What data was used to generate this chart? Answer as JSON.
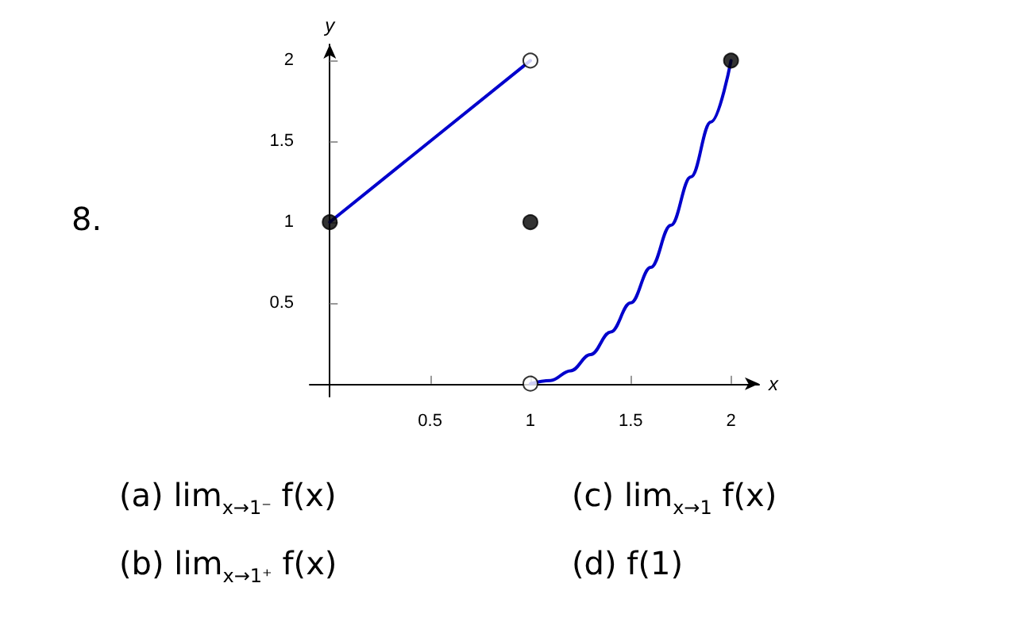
{
  "chart_data": {
    "type": "line",
    "xlabel": "x",
    "ylabel": "y",
    "xlim": [
      -0.1,
      2.14
    ],
    "ylim": [
      -0.08,
      2.1
    ],
    "xticks": [
      0.5,
      1,
      1.5,
      2
    ],
    "yticks": [
      0.5,
      1,
      1.5,
      2
    ],
    "marker": "none",
    "annotations": [
      "8.",
      "(a) lim$_{x→1⁻}$ f(x)",
      "(b) lim$_{x→1⁺}$ f(x)",
      "(c) lim$_{x→1}$ f(x)",
      "(d) f(1)"
    ],
    "series": [
      {
        "color": "#0000cc",
        "x": [
          0,
          1
        ],
        "values": [
          1,
          2
        ]
      },
      {
        "color": "#0000cc",
        "x": [
          1,
          1.1,
          1.2,
          1.3,
          1.4,
          1.5,
          1.6,
          1.7,
          1.8,
          1.9,
          2
        ],
        "values": [
          0,
          0.02,
          0.08,
          0.18,
          0.32,
          0.5,
          0.72,
          0.98,
          1.28,
          1.62,
          2
        ]
      },
      {
        "type": "scatter",
        "color": "#000000",
        "marker": "circle",
        "x": [
          0,
          1,
          2
        ],
        "values": [
          1,
          1,
          2
        ]
      },
      {
        "type": "scatter",
        "color": "#ffffff",
        "marker": "circle",
        "x": [
          1,
          1
        ],
        "values": [
          2,
          0
        ]
      }
    ]
  }
}
